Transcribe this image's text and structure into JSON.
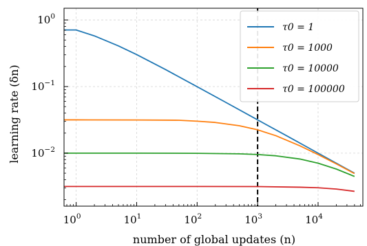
{
  "chart_data": {
    "type": "line",
    "xlabel": "number of global updates (n)",
    "ylabel": "learning rate (δn)",
    "x_scale": "log",
    "y_scale": "log",
    "xlim": [
      0.63,
      55000
    ],
    "ylim": [
      0.0016,
      1.5
    ],
    "grid": true,
    "legend_position": "top-right",
    "x_ticks": [
      {
        "value": 1,
        "base": "10",
        "exp": "0"
      },
      {
        "value": 10,
        "base": "10",
        "exp": "1"
      },
      {
        "value": 100,
        "base": "10",
        "exp": "2"
      },
      {
        "value": 1000,
        "base": "10",
        "exp": "3"
      },
      {
        "value": 10000,
        "base": "10",
        "exp": "4"
      }
    ],
    "y_ticks": [
      {
        "value": 1,
        "base": "10",
        "exp": "0"
      },
      {
        "value": 0.1,
        "base": "10",
        "exp": "−1"
      },
      {
        "value": 0.01,
        "base": "10",
        "exp": "−2"
      }
    ],
    "vline": {
      "x": 1000,
      "style": "dashed",
      "color": "#000000"
    },
    "series": [
      {
        "name": "τ0 = 1",
        "color": "#1f77b4",
        "x": [
          0.63,
          1,
          2,
          5,
          10,
          30,
          100,
          300,
          1000,
          3000,
          10000,
          30000,
          40000
        ],
        "y": [
          0.707,
          0.707,
          0.577,
          0.408,
          0.302,
          0.18,
          0.0995,
          0.0577,
          0.0316,
          0.0183,
          0.01,
          0.00577,
          0.005
        ]
      },
      {
        "name": "τ0 = 1000",
        "color": "#ff7f0e",
        "x": [
          0.63,
          1,
          10,
          50,
          100,
          200,
          500,
          1000,
          2000,
          5000,
          10000,
          20000,
          40000
        ],
        "y": [
          0.0316,
          0.0316,
          0.0315,
          0.0312,
          0.0302,
          0.0289,
          0.0258,
          0.0224,
          0.0183,
          0.0129,
          0.00953,
          0.0069,
          0.00493
        ]
      },
      {
        "name": "τ0 = 10000",
        "color": "#2ca02c",
        "x": [
          0.63,
          1,
          10,
          100,
          500,
          1000,
          2000,
          5000,
          10000,
          20000,
          40000
        ],
        "y": [
          0.01,
          0.01,
          0.01,
          0.00995,
          0.00976,
          0.00953,
          0.00913,
          0.00816,
          0.00707,
          0.00577,
          0.00447
        ]
      },
      {
        "name": "τ0 = 100000",
        "color": "#d62728",
        "x": [
          0.63,
          1,
          10,
          100,
          1000,
          5000,
          10000,
          20000,
          40000
        ],
        "y": [
          0.00316,
          0.00316,
          0.00316,
          0.00316,
          0.00315,
          0.00308,
          0.00302,
          0.00289,
          0.00267
        ]
      }
    ]
  }
}
